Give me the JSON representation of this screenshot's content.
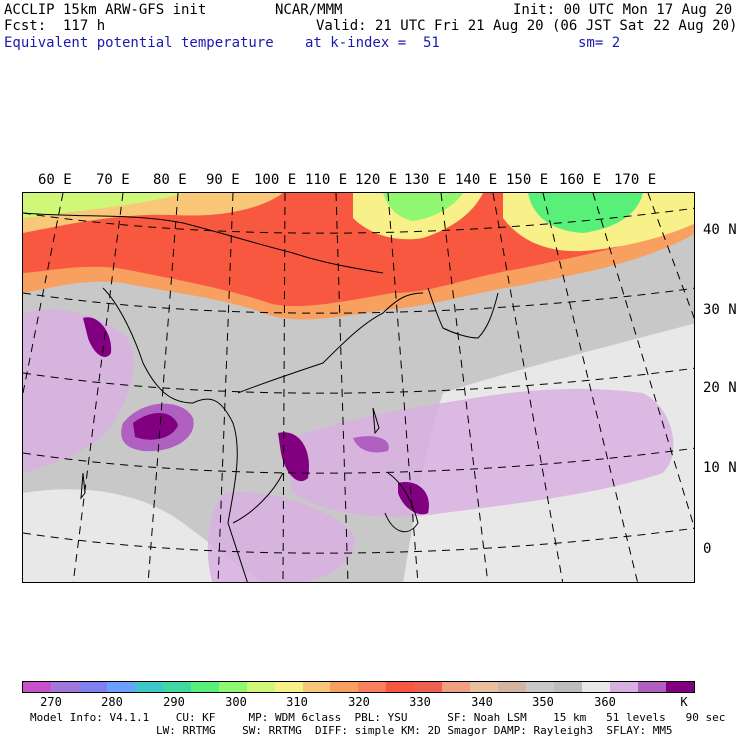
{
  "header": {
    "model_title": "ACCLIP 15km ARW-GFS init",
    "forecast": "Fcst:  117 h",
    "field_name": "Equivalent potential temperature",
    "org": "NCAR/MMM",
    "init": "Init: 00 UTC Mon 17 Aug 20",
    "valid": "Valid: 21 UTC Fri 21 Aug 20 (06 JST Sat 22 Aug 20)",
    "level": "at k-index =  51",
    "smoothing": "sm= 2"
  },
  "map": {
    "lon_labels": [
      "60 E",
      "70 E",
      "80 E",
      "90 E",
      "100 E",
      "110 E",
      "120 E",
      "130 E",
      "140 E",
      "150 E",
      "160 E",
      "170 E"
    ],
    "lat_labels": [
      "40 N",
      "30 N",
      "20 N",
      "10 N",
      "0"
    ]
  },
  "colorbar": {
    "unit": "K",
    "tick_labels": [
      "270",
      "280",
      "290",
      "300",
      "310",
      "320",
      "330",
      "340",
      "350",
      "360"
    ],
    "colors": [
      "#c850c8",
      "#a078dc",
      "#8080f0",
      "#6aa0ff",
      "#40c8c8",
      "#40d8a0",
      "#58f078",
      "#90f870",
      "#d0f878",
      "#f8f088",
      "#f8c878",
      "#f8a060",
      "#f88060",
      "#f85840",
      "#f06050",
      "#f0a080",
      "#e8c0a0",
      "#d2b4a0",
      "#c8c8c8",
      "#bcbcbc",
      "#e8e8e8",
      "#d8b0e0",
      "#b060c0",
      "#800080"
    ]
  },
  "footer": {
    "line1": "Model Info: V4.1.1    CU: KF     MP: WDM 6class  PBL: YSU      SF: Noah LSM    15 km   51 levels   90 sec",
    "line2": "LW: RRTMG    SW: RRTMG  DIFF: simple KM: 2D Smagor DAMP: Rayleigh3  SFLAY: MM5"
  },
  "colors": {
    "header_blue": "#1a1ab0",
    "gray_ocean": "#c8c8c8",
    "light_gray": "#e8e8e8",
    "red": "#f85840",
    "orange": "#f8a060",
    "yellow": "#f8f088",
    "green": "#58f078",
    "light_purple": "#d8b0e0",
    "purple": "#800080"
  }
}
